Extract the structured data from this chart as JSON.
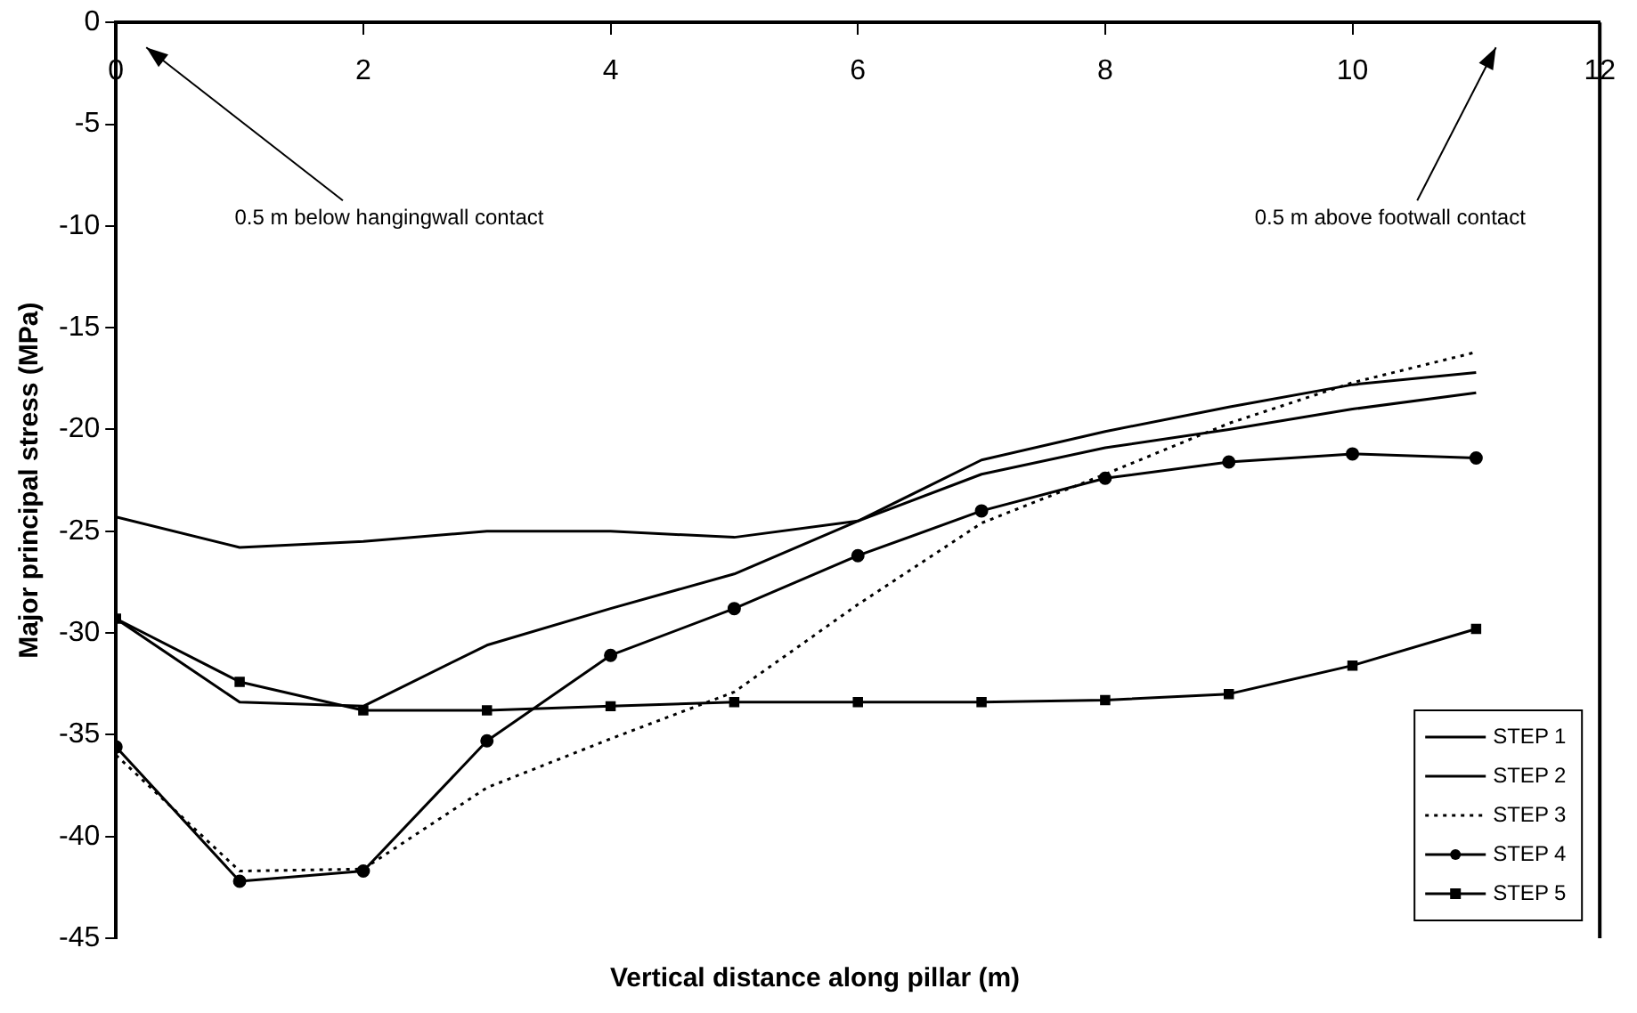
{
  "chart_data": {
    "type": "line",
    "xlabel": "Vertical distance along pillar (m)",
    "ylabel": "Major principal stress (MPa)",
    "x": [
      0,
      1,
      2,
      3,
      4,
      5,
      6,
      7,
      8,
      9,
      10,
      11
    ],
    "xlim": [
      0,
      12
    ],
    "xticks": [
      0,
      2,
      4,
      6,
      8,
      10,
      12
    ],
    "ylim": [
      -45,
      0
    ],
    "yticks": [
      0,
      -5,
      -10,
      -15,
      -20,
      -25,
      -30,
      -35,
      -40,
      -45
    ],
    "grid": false,
    "legend": "bottom right",
    "annotations": [
      "0.5 m below hangingwall contact",
      "0.5 m above footwall contact"
    ],
    "series": [
      {
        "name": "STEP 1",
        "color": "#000000",
        "line_style": "solid",
        "marker": "none",
        "values": [
          -24.3,
          -25.8,
          -25.5,
          -25.0,
          -25.0,
          -25.3,
          -24.5,
          -22.2,
          -20.9,
          -20.0,
          -19.0,
          -18.2
        ]
      },
      {
        "name": "STEP 2",
        "color": "#000000",
        "line_style": "solid",
        "marker": "none",
        "values": [
          -29.3,
          -33.4,
          -33.6,
          -30.6,
          -28.8,
          -27.1,
          -24.5,
          -21.5,
          -20.1,
          -18.9,
          -17.8,
          -17.2
        ]
      },
      {
        "name": "STEP 3",
        "color": "#000000",
        "line_style": "dotted",
        "marker": "none",
        "values": [
          -36.0,
          -41.7,
          -41.6,
          -37.6,
          -35.2,
          -32.9,
          -28.6,
          -24.6,
          -22.2,
          -19.7,
          -17.7,
          -16.2
        ]
      },
      {
        "name": "STEP 4",
        "color": "#000000",
        "line_style": "solid",
        "marker": "circle",
        "values": [
          -35.6,
          -42.2,
          -41.7,
          -35.3,
          -31.1,
          -28.8,
          -26.2,
          -24.0,
          -22.4,
          -21.6,
          -21.2,
          -21.4
        ]
      },
      {
        "name": "STEP 5",
        "color": "#000000",
        "line_style": "solid",
        "marker": "square",
        "values": [
          -29.3,
          -32.4,
          -33.8,
          -33.8,
          -33.6,
          -33.4,
          -33.4,
          -33.4,
          -33.3,
          -33.0,
          -31.6,
          -29.8
        ]
      }
    ]
  }
}
